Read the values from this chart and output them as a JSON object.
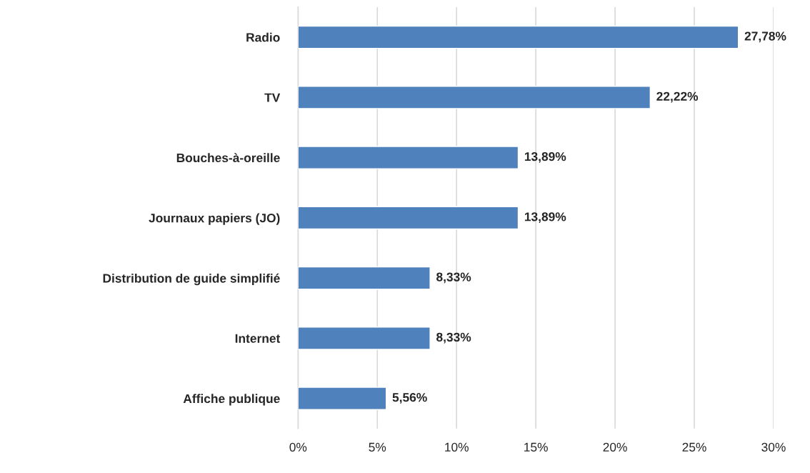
{
  "chart_data": {
    "type": "bar",
    "orientation": "horizontal",
    "categories": [
      "Radio",
      "TV",
      "Bouches-à-oreille",
      "Journaux papiers (JO)",
      "Distribution de guide simplifié",
      "Internet",
      "Affiche publique"
    ],
    "values": [
      27.78,
      22.22,
      13.89,
      13.89,
      8.33,
      8.33,
      5.56
    ],
    "value_labels": [
      "27,78%",
      "22,22%",
      "13,89%",
      "13,89%",
      "8,33%",
      "8,33%",
      "5,56%"
    ],
    "color": "#4f81bd",
    "xlim": [
      0,
      30
    ],
    "xticks": [
      {
        "value": 0,
        "label": "0%"
      },
      {
        "value": 5,
        "label": "5%"
      },
      {
        "value": 10,
        "label": "10%"
      },
      {
        "value": 15,
        "label": "15%"
      },
      {
        "value": 20,
        "label": "20%"
      },
      {
        "value": 25,
        "label": "25%"
      },
      {
        "value": 30,
        "label": "30%"
      }
    ],
    "grid": "x",
    "legend": false
  }
}
